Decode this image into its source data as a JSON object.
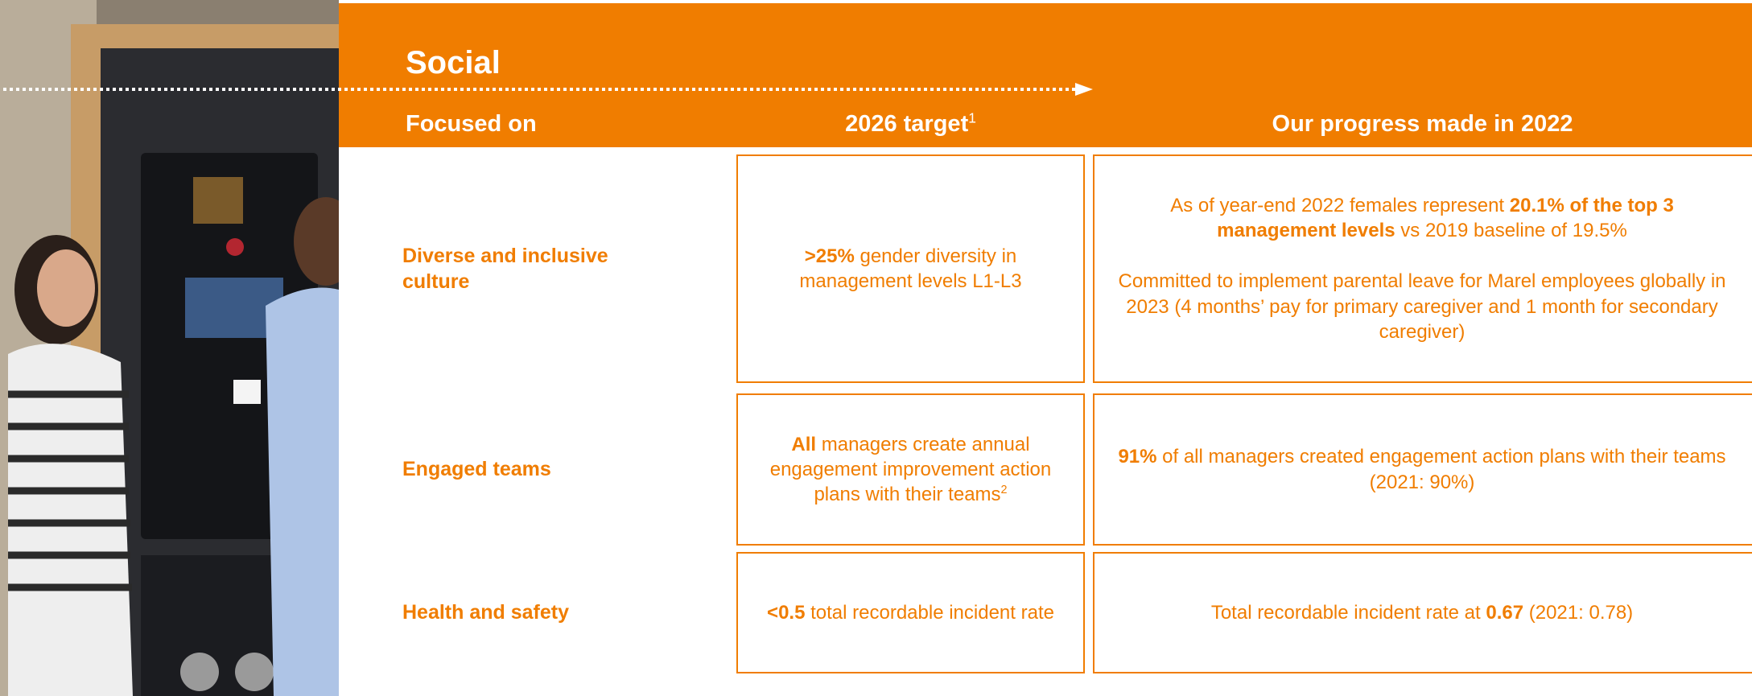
{
  "header": {
    "title": "Social"
  },
  "columns": [
    [
      {
        "text": "Focused on"
      }
    ],
    [
      {
        "text": "2026 target"
      },
      {
        "text": "1",
        "sup": true
      }
    ],
    [
      {
        "text": "Our progress made in 2022"
      }
    ]
  ],
  "rows": [
    {
      "label": "Diverse and inclusive culture",
      "target": [
        [
          {
            "text": ">25%",
            "bold": true
          },
          {
            "text": " gender diversity in management levels L1-L3"
          }
        ]
      ],
      "progress": [
        [
          {
            "text": "As of year-end 2022 females represent "
          },
          {
            "text": "20.1% of the top 3 management levels",
            "bold": true
          },
          {
            "text": " vs 2019 baseline of 19.5%"
          }
        ],
        [
          {
            "text": "Committed to implement parental leave for Marel employees globally in 2023 (4 months’ pay for primary caregiver and 1 month for secondary caregiver)"
          }
        ]
      ]
    },
    {
      "label": "Engaged teams",
      "target": [
        [
          {
            "text": "All",
            "bold": true
          },
          {
            "text": " managers create annual engagement improvement action plans with their teams"
          },
          {
            "text": "2",
            "sup": true
          }
        ]
      ],
      "progress": [
        [
          {
            "text": "91%",
            "bold": true
          },
          {
            "text": " of all managers created engagement action plans with their teams (2021: 90%)"
          }
        ]
      ]
    },
    {
      "label": "Health  and safety",
      "target": [
        [
          {
            "text": "<0.5",
            "bold": true
          },
          {
            "text": " total recordable incident rate"
          }
        ]
      ],
      "progress": [
        [
          {
            "text": "Total recordable incident rate at "
          },
          {
            "text": "0.67",
            "bold": true
          },
          {
            "text": " (2021: 0.78)"
          }
        ]
      ]
    }
  ]
}
